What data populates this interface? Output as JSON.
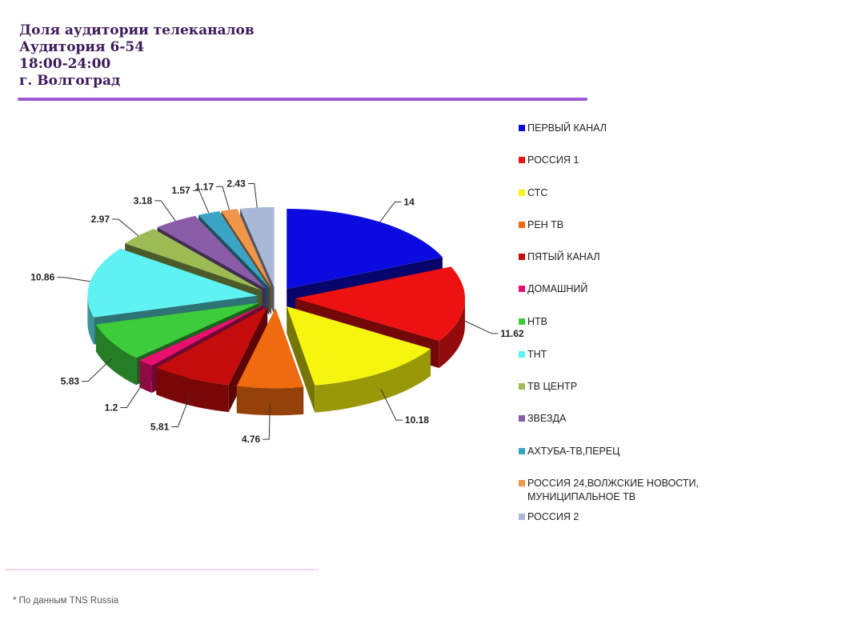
{
  "header": {
    "title_lines": [
      "Доля аудитории телеканалов",
      "Аудитория 6-54",
      "18:00-24:00",
      "г. Волгоград"
    ]
  },
  "footnote": "* По данным TNS Russia",
  "colors": {
    "title": "#3c1a5b",
    "divider": "#9b59d0"
  },
  "chart_data": {
    "type": "pie",
    "style": "3d-exploded",
    "legend_position": "right",
    "title": "Доля аудитории телеканалов",
    "slices": [
      {
        "label": "ПЕРВЫЙ КАНАЛ",
        "value": 14,
        "value_label": "14",
        "color": "#0b0be0"
      },
      {
        "label": "РОССИЯ 1",
        "value": 11.62,
        "value_label": "11.62",
        "color": "#ee1111"
      },
      {
        "label": "СТС",
        "value": 10.18,
        "value_label": "10.18",
        "color": "#f5f50f"
      },
      {
        "label": "РЕН ТВ",
        "value": 4.76,
        "value_label": "4.76",
        "color": "#f06a10"
      },
      {
        "label": "ПЯТЫЙ КАНАЛ",
        "value": 5.81,
        "value_label": "5.81",
        "color": "#c40c0c"
      },
      {
        "label": "ДОМАШНИЙ",
        "value": 1.2,
        "value_label": "1.2",
        "color": "#e8106e"
      },
      {
        "label": "НТВ",
        "value": 5.83,
        "value_label": "5.83",
        "color": "#3ccc3c"
      },
      {
        "label": "ТНТ",
        "value": 10.86,
        "value_label": "10.86",
        "color": "#5ef2f2"
      },
      {
        "label": "ТВ ЦЕНТР",
        "value": 2.97,
        "value_label": "2.97",
        "color": "#9dbb55"
      },
      {
        "label": "ЗВЕЗДА",
        "value": 3.18,
        "value_label": "3.18",
        "color": "#8a5ca8"
      },
      {
        "label": "АХТУБА-ТВ,ПЕРЕЦ",
        "value": 1.57,
        "value_label": "1.57",
        "color": "#3aa4c4"
      },
      {
        "label": "РОССИЯ 24,ВОЛЖСКИЕ НОВОСТИ,\nМУНИЦИПАЛЬНОЕ ТВ",
        "value": 1.17,
        "value_label": "1.17",
        "color": "#f0964a"
      },
      {
        "label": "РОССИЯ 2",
        "value": 2.43,
        "value_label": "2.43",
        "color": "#a9b8d6"
      }
    ]
  }
}
